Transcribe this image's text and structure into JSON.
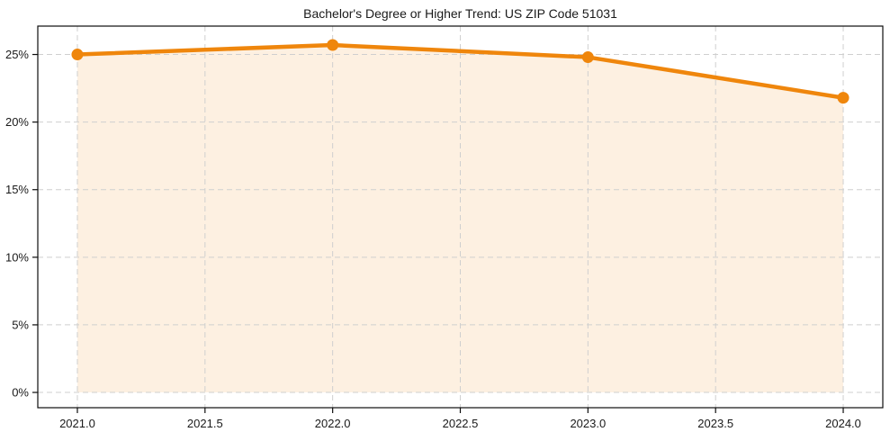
{
  "chart_data": {
    "type": "line",
    "title": "Bachelor's Degree or Higher Trend: US ZIP Code 51031",
    "xlabel": "",
    "ylabel": "",
    "x": [
      2021,
      2022,
      2023,
      2024
    ],
    "values": [
      25.0,
      25.7,
      24.8,
      21.8
    ],
    "unit": "%",
    "xlim": [
      2020.845,
      2024.155
    ],
    "ylim": [
      -1.13,
      27.1
    ],
    "xticks": [
      2021.0,
      2021.5,
      2022.0,
      2022.5,
      2023.0,
      2023.5,
      2024.0
    ],
    "xtick_labels": [
      "2021.0",
      "2021.5",
      "2022.0",
      "2022.5",
      "2023.0",
      "2023.5",
      "2024.0"
    ],
    "yticks": [
      0,
      5,
      10,
      15,
      20,
      25
    ],
    "ytick_labels": [
      "0%",
      "5%",
      "10%",
      "15%",
      "20%",
      "25%"
    ],
    "grid": true,
    "grid_style": "dashed",
    "legend": "none",
    "area_fill_to_zero": true,
    "colors": {
      "line": "#ef860c",
      "marker": "#ef860c",
      "area_fill": "rgba(239,134,12,0.12)",
      "grid": "#cfcfcf",
      "spine": "#0d0d0d",
      "text": "#1a1a1a",
      "background": "#ffffff"
    }
  }
}
